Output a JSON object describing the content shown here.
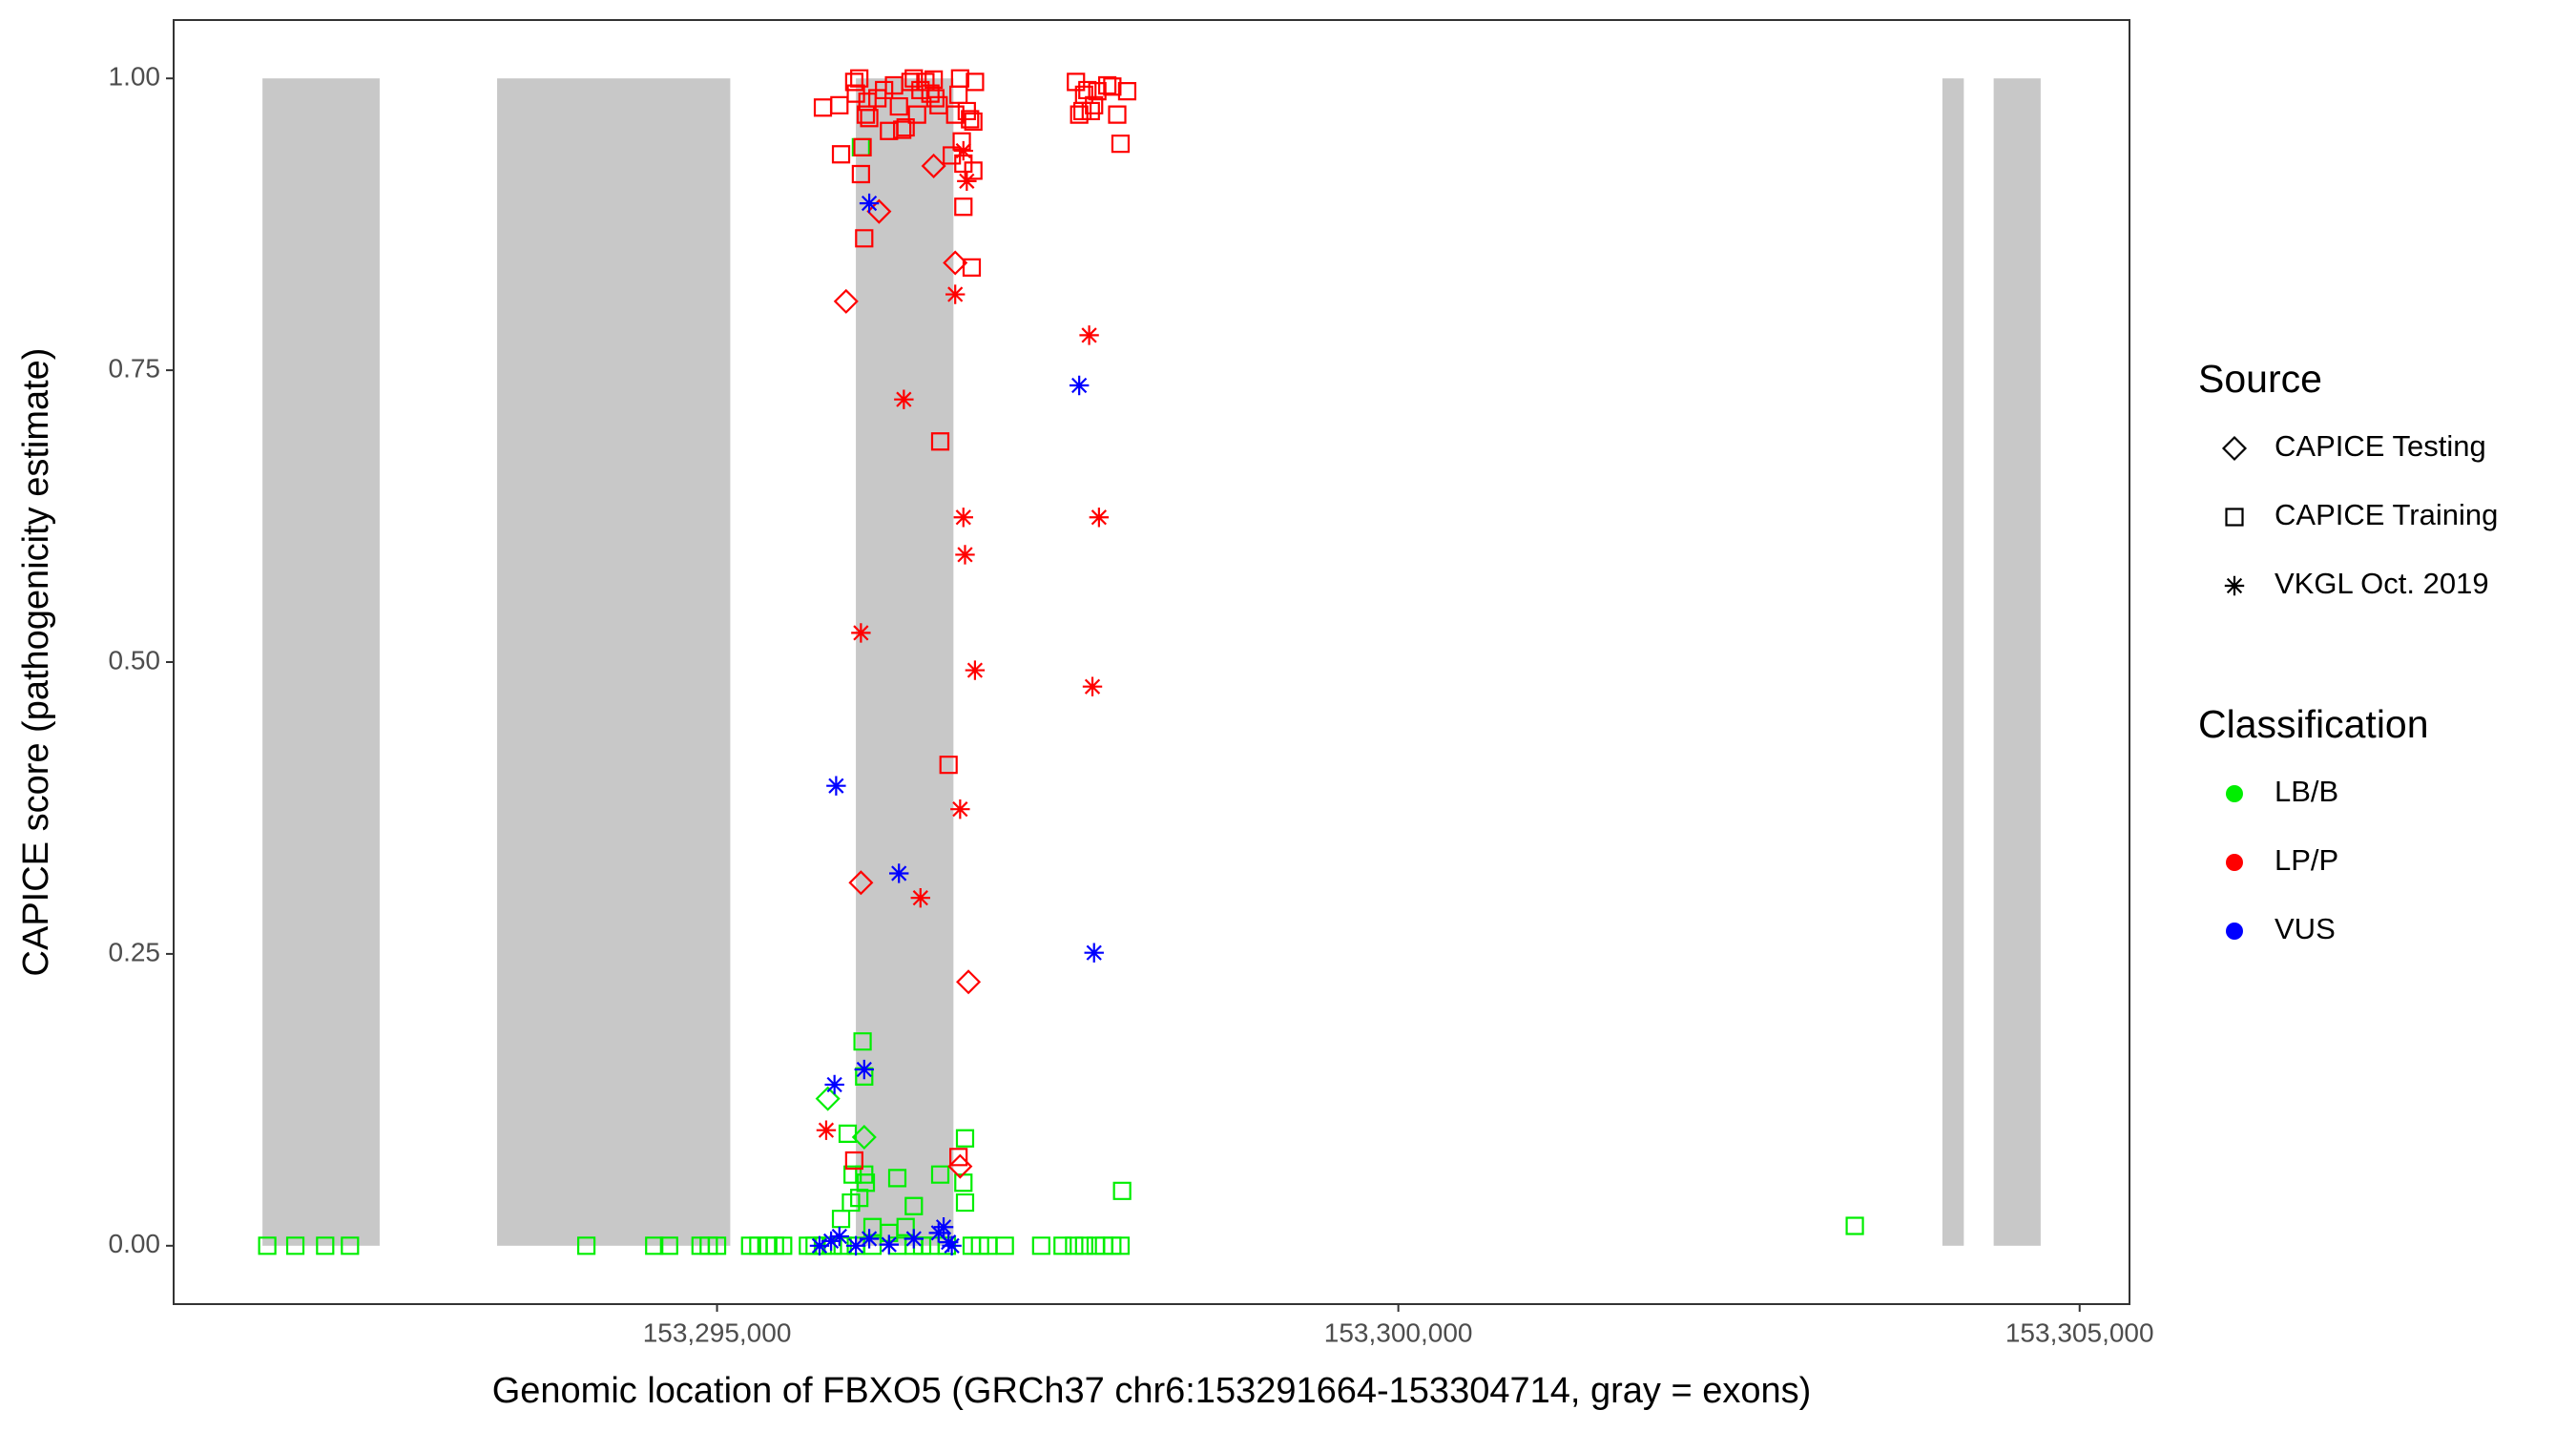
{
  "chart_data": {
    "type": "scatter",
    "x_label": "Genomic location of FBXO5 (GRCh37 chr6:153291664-153304714, gray = exons)",
    "y_label": "CAPICE score (pathogenicity estimate)",
    "xlim": [
      153291012,
      153305366
    ],
    "ylim": [
      -0.05,
      1.05
    ],
    "xticks": [
      {
        "value": 153295000,
        "label": "153,295,000"
      },
      {
        "value": 153300000,
        "label": "153,300,000"
      },
      {
        "value": 153305000,
        "label": "153,305,000"
      }
    ],
    "yticks": [
      {
        "value": 0,
        "label": "0.00"
      },
      {
        "value": 0.25,
        "label": "0.25"
      },
      {
        "value": 0.5,
        "label": "0.50"
      },
      {
        "value": 0.75,
        "label": "0.75"
      },
      {
        "value": 1,
        "label": "1.00"
      }
    ],
    "grid": false,
    "exon_color": "#c8c8c8",
    "exons": [
      {
        "start": 153291664,
        "end": 153292524
      },
      {
        "start": 153293386,
        "end": 153295097
      },
      {
        "start": 153296019,
        "end": 153296735
      },
      {
        "start": 153303993,
        "end": 153304150
      },
      {
        "start": 153304369,
        "end": 153304714
      }
    ],
    "shape_legend": {
      "title": "Source",
      "entries": [
        {
          "label": "CAPICE Testing",
          "shape": "diamond"
        },
        {
          "label": "CAPICE Training",
          "shape": "square"
        },
        {
          "label": "VKGL Oct. 2019",
          "shape": "star"
        }
      ]
    },
    "color_legend": {
      "title": "Classification",
      "entries": [
        {
          "label": "LB/B",
          "color": "#00ee00"
        },
        {
          "label": "LP/P",
          "color": "#ff0000"
        },
        {
          "label": "VUS",
          "color": "#0000ff"
        }
      ]
    },
    "series": [
      {
        "shape": "square",
        "color": "#00ee00",
        "x": [
          153291699,
          153291905,
          153292124,
          153292306,
          153294041,
          153294539,
          153294648,
          153294879,
          153294939,
          153295000,
          153295243,
          153295303,
          153295376,
          153295425,
          153295485,
          153295667,
          153295716,
          153295777,
          153295850,
          153295922,
          153296019,
          153296141,
          153296323,
          153296444,
          153296505,
          153296566,
          153296687,
          153296869,
          153296930,
          153296990,
          153297112,
          153297379,
          153297536,
          153297621,
          153297694,
          153297779,
          153297840,
          153297901,
          153297961,
          153303350,
          153297973,
          153296820,
          153296068,
          153296080,
          153295959,
          153295995,
          153295983,
          153296080,
          153296092,
          153296044,
          153296323,
          153296444,
          153296638,
          153296808,
          153296820,
          153295910,
          153296141,
          153296262,
          153296384,
          153296056
        ],
        "values": [
          0,
          0,
          0,
          0,
          0,
          0,
          0,
          0,
          0,
          0,
          0,
          0,
          0,
          0,
          0,
          0,
          0,
          0,
          0,
          0,
          0,
          0,
          0,
          0,
          0,
          0,
          0,
          0,
          0,
          0,
          0,
          0,
          0,
          0,
          0,
          0,
          0,
          0,
          0,
          0.017,
          0.047,
          0.092,
          0.175,
          0.145,
          0.096,
          0.061,
          0.037,
          0.061,
          0.054,
          0.041,
          0.058,
          0.034,
          0.061,
          0.054,
          0.037,
          0.023,
          0.016,
          0.011,
          0.016,
          0.941
        ]
      },
      {
        "shape": "diamond",
        "color": "#00ee00",
        "x": [
          153295813,
          153296080
        ],
        "values": [
          0.126,
          0.093
        ]
      },
      {
        "shape": "square",
        "color": "#ff0000",
        "x": [
          153295777,
          153295898,
          153295910,
          153296007,
          153296019,
          153296044,
          153296056,
          153296068,
          153296080,
          153296092,
          153296104,
          153296117,
          153296177,
          153296226,
          153296262,
          153296299,
          153296335,
          153296359,
          153296384,
          153296420,
          153296444,
          153296468,
          153296493,
          153296529,
          153296566,
          153296590,
          153296602,
          153296626,
          153296638,
          153296699,
          153296723,
          153296748,
          153296772,
          153296784,
          153296796,
          153296808,
          153296808,
          153296833,
          153296857,
          153296869,
          153296881,
          153296893,
          153296881,
          153297634,
          153297658,
          153297682,
          153297694,
          153297718,
          153297743,
          153297767,
          153297791,
          153297864,
          153297901,
          153297937,
          153297961,
          153298010,
          153296772,
          153296007
        ],
        "values": [
          0.975,
          0.977,
          0.935,
          0.997,
          0.987,
          1,
          0.918,
          0.941,
          0.863,
          0.969,
          0.98,
          0.966,
          0.983,
          0.99,
          0.955,
          0.994,
          0.976,
          0.956,
          0.958,
          0.997,
          1,
          0.969,
          0.99,
          0.997,
          0.987,
          0.999,
          0.983,
          0.977,
          0.689,
          0.412,
          0.934,
          0.969,
          0.986,
          1,
          0.946,
          0.927,
          0.89,
          0.972,
          0.965,
          0.838,
          0.963,
          0.997,
          0.921,
          0.997,
          0.969,
          0.972,
          0.986,
          0.99,
          0.972,
          0.977,
          0.989,
          0.994,
          0.993,
          0.969,
          0.944,
          0.989,
          0.076,
          0.073
        ]
      },
      {
        "shape": "diamond",
        "color": "#ff0000",
        "x": [
          153295947,
          153296189,
          153296590,
          153296748,
          153296845,
          153296056,
          153296784
        ],
        "values": [
          0.809,
          0.886,
          0.925,
          0.842,
          0.226,
          0.311,
          0.068
        ]
      },
      {
        "shape": "star",
        "color": "#ff0000",
        "x": [
          153295801,
          153296056,
          153296371,
          153296493,
          153296748,
          153296784,
          153296808,
          153296820,
          153296833,
          153296808,
          153296893,
          153297731,
          153297755,
          153297803
        ],
        "values": [
          0.099,
          0.525,
          0.725,
          0.298,
          0.815,
          0.374,
          0.624,
          0.592,
          0.912,
          0.938,
          0.493,
          0.78,
          0.479,
          0.624
        ]
      },
      {
        "shape": "star",
        "color": "#0000ff",
        "x": [
          153296117,
          153295874,
          153296335,
          153295862,
          153296080,
          153297658,
          153297767,
          153295752,
          153295837,
          153295898,
          153296019,
          153296117,
          153296262,
          153296444,
          153296626,
          153296663,
          153296699,
          153296723
        ],
        "values": [
          0.893,
          0.394,
          0.319,
          0.138,
          0.151,
          0.737,
          0.251,
          0,
          0.004,
          0.008,
          0,
          0.006,
          0.001,
          0.006,
          0.011,
          0.016,
          0.003,
          0
        ]
      }
    ]
  }
}
